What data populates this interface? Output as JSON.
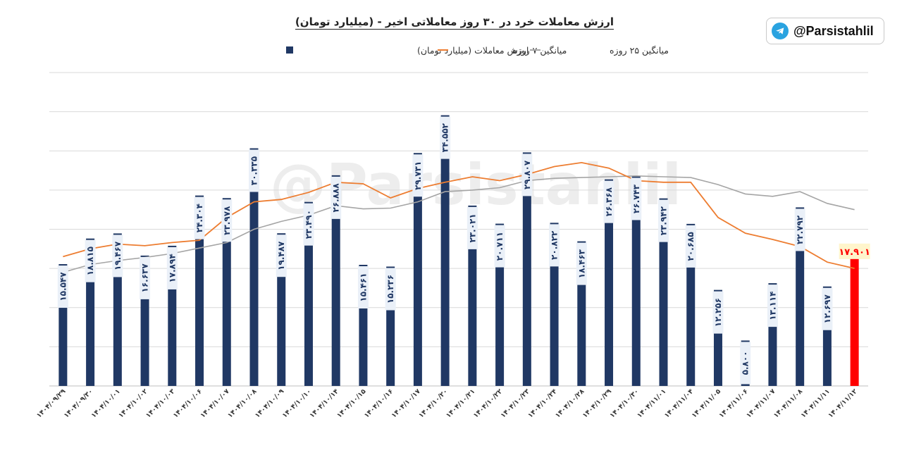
{
  "badge": {
    "icon": "telegram-icon",
    "handle": "@Parsistahlil"
  },
  "watermark": "@Parsistahlil",
  "chart_data": {
    "type": "bar",
    "title": "ارزش معاملات خرد در ۳۰ روز معاملاتی اخیر - (میلیارد تومان)",
    "legend": [
      "ارزش معاملات (میلیارد تومان)",
      "میانگین ۷ روزه",
      "میانگین ۲۵ روزه"
    ],
    "legend_position": "top",
    "grid": true,
    "ylim": [
      0,
      40
    ],
    "categories": [
      "۱۴۰۴/۰۹/۲۹",
      "۱۴۰۴/۰۹/۳۰",
      "۱۴۰۴/۱۰/۰۱",
      "۱۴۰۴/۱۰/۰۲",
      "۱۴۰۴/۱۰/۰۳",
      "۱۴۰۴/۱۰/۰۶",
      "۱۴۰۴/۱۰/۰۷",
      "۱۴۰۴/۱۰/۰۸",
      "۱۴۰۴/۱۰/۰۹",
      "۱۴۰۴/۱۰/۱۰",
      "۱۴۰۴/۱۰/۱۴",
      "۱۴۰۴/۱۰/۱۵",
      "۱۴۰۴/۱۰/۱۶",
      "۱۴۰۴/۱۰/۱۷",
      "۱۴۰۴/۱۰/۲۰",
      "۱۴۰۴/۱۰/۲۱",
      "۱۴۰۴/۱۰/۲۲",
      "۱۴۰۴/۱۰/۲۳",
      "۱۴۰۴/۱۰/۲۴",
      "۱۴۰۴/۱۰/۲۸",
      "۱۴۰۴/۱۰/۲۹",
      "۱۴۰۴/۱۰/۳۰",
      "۱۴۰۴/۱۱/۰۱",
      "۱۴۰۴/۱۱/۰۴",
      "۱۴۰۴/۱۱/۰۵",
      "۱۴۰۴/۱۱/۰۶",
      "۱۴۰۴/۱۱/۰۷",
      "۱۴۰۴/۱۱/۰۸",
      "۱۴۰۴/۱۱/۱۱",
      "۱۴۰۴/۱۱/۱۲"
    ],
    "series": [
      {
        "name": "ارزش معاملات (میلیارد تومان)",
        "color": "#203864",
        "values": [
          15.547,
          18.815,
          19.467,
          16.637,
          17.894,
          24.304,
          23.978,
          30.335,
          19.487,
          23.49,
          26.888,
          15.461,
          15.236,
          29.731,
          34.552,
          23.021,
          20.711,
          29.807,
          20.822,
          18.463,
          26.368,
          26.743,
          23.942,
          20.685,
          12.256,
          5.8,
          13.114,
          22.792,
          12.697,
          17.901
        ],
        "labels": [
          "۱۵.۵۴۷",
          "۱۸.۸۱۵",
          "۱۹.۴۶۷",
          "۱۶.۶۳۷",
          "۱۷.۸۹۴",
          "۲۴.۳۰۴",
          "۲۳.۹۷۸",
          "۳۰.۳۳۵",
          "۱۹.۴۸۷",
          "۲۳.۴۹۰",
          "۲۶.۸۸۸",
          "۱۵.۴۶۱",
          "۱۵.۲۳۶",
          "۲۹.۷۳۱",
          "۳۴.۵۵۲",
          "۲۳.۰۲۱",
          "۲۰.۷۱۱",
          "۲۹.۸۰۷",
          "۲۰.۸۲۲",
          "۱۸.۴۶۳",
          "۲۶.۳۶۸",
          "۲۶.۷۴۳",
          "۲۳.۹۴۲",
          "۲۰.۶۸۵",
          "۱۲.۲۵۶",
          "۵.۸۰۰",
          "۱۳.۱۱۴",
          "۲۲.۷۹۲",
          "۱۲.۶۹۷",
          "۱۷.۹۰۱"
        ],
        "highlight_index": 29,
        "highlight_color": "#ff0000"
      },
      {
        "name": "میانگین ۷ روزه",
        "color": "#ed7d31",
        "values": [
          16.5,
          17.5,
          18.1,
          17.9,
          18.3,
          18.6,
          21.5,
          23.5,
          23.8,
          24.7,
          26.0,
          25.8,
          24.0,
          25.2,
          26.0,
          26.7,
          26.2,
          27.0,
          28.0,
          28.5,
          27.8,
          26.2,
          26.0,
          26.0,
          21.5,
          19.5,
          18.7,
          17.8,
          15.8,
          15.0
        ]
      },
      {
        "name": "میانگین ۲۵ روزه",
        "color": "#a5a5a5",
        "values": [
          14.5,
          15.5,
          16.0,
          16.4,
          16.9,
          17.6,
          18.3,
          20.0,
          21.0,
          21.8,
          23.0,
          22.6,
          22.7,
          23.5,
          24.8,
          25.0,
          25.3,
          26.2,
          26.5,
          26.6,
          26.7,
          26.8,
          26.7,
          26.6,
          25.7,
          24.5,
          24.2,
          24.8,
          23.3,
          22.5
        ]
      }
    ]
  }
}
